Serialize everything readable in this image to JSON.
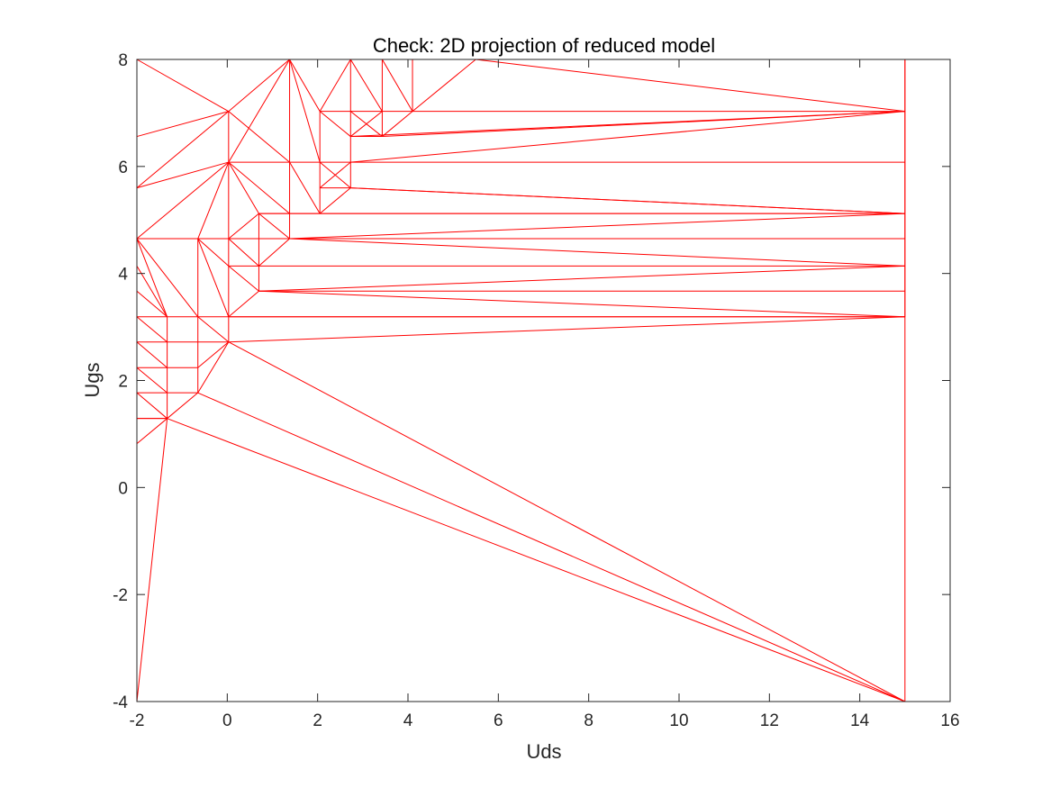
{
  "chart_data": {
    "type": "mesh",
    "title": "Check: 2D projection of reduced model",
    "xlabel": "Uds",
    "ylabel": "Ugs",
    "xlim": [
      -2,
      16
    ],
    "ylim": [
      -4,
      8
    ],
    "xticks": [
      -2,
      0,
      2,
      4,
      6,
      8,
      10,
      12,
      14,
      16
    ],
    "yticks": [
      -4,
      -2,
      0,
      2,
      4,
      6,
      8
    ],
    "grid": false,
    "mesh_color": "#ff0000",
    "box": true,
    "vertices": [
      [
        -2,
        -4
      ],
      [
        15,
        -4
      ],
      [
        15,
        8
      ],
      [
        -2,
        8
      ],
      [
        -2,
        0.82
      ],
      [
        -2,
        1.29
      ],
      [
        -2,
        1.77
      ],
      [
        -2,
        2.24
      ],
      [
        -2,
        2.72
      ],
      [
        -2,
        3.19
      ],
      [
        -2,
        3.67
      ],
      [
        -2,
        4.14
      ],
      [
        -2,
        4.65
      ],
      [
        -2,
        5.6
      ],
      [
        -2,
        6.56
      ],
      [
        -1.33,
        1.29
      ],
      [
        -1.33,
        1.77
      ],
      [
        -1.33,
        2.24
      ],
      [
        -1.33,
        2.72
      ],
      [
        -1.33,
        3.19
      ],
      [
        -0.65,
        1.77
      ],
      [
        -0.65,
        2.24
      ],
      [
        -0.65,
        2.72
      ],
      [
        -0.65,
        3.19
      ],
      [
        -0.65,
        4.65
      ],
      [
        0.03,
        2.72
      ],
      [
        0.03,
        3.19
      ],
      [
        0.03,
        4.14
      ],
      [
        0.03,
        4.65
      ],
      [
        0.03,
        6.08
      ],
      [
        0.03,
        7.03
      ],
      [
        0.7,
        3.67
      ],
      [
        0.7,
        4.14
      ],
      [
        0.7,
        5.12
      ],
      [
        1.38,
        4.65
      ],
      [
        1.38,
        5.12
      ],
      [
        1.38,
        6.08
      ],
      [
        1.38,
        8
      ],
      [
        2.05,
        5.12
      ],
      [
        2.05,
        5.6
      ],
      [
        2.05,
        6.08
      ],
      [
        2.05,
        7.03
      ],
      [
        2.73,
        5.6
      ],
      [
        2.73,
        6.08
      ],
      [
        2.73,
        6.56
      ],
      [
        2.73,
        7.03
      ],
      [
        2.73,
        8
      ],
      [
        3.43,
        6.56
      ],
      [
        3.43,
        7.03
      ],
      [
        3.43,
        8
      ],
      [
        4.1,
        7.03
      ],
      [
        4.1,
        8
      ],
      [
        5.5,
        8
      ],
      [
        15,
        3.19
      ],
      [
        15,
        3.67
      ],
      [
        15,
        4.14
      ],
      [
        15,
        4.65
      ],
      [
        15,
        5.12
      ],
      [
        15,
        6.08
      ],
      [
        15,
        7.03
      ]
    ],
    "edges": [
      [
        0,
        1
      ],
      [
        1,
        2
      ],
      [
        2,
        3
      ],
      [
        3,
        0
      ],
      [
        0,
        15
      ],
      [
        4,
        15
      ],
      [
        5,
        15
      ],
      [
        6,
        16
      ],
      [
        7,
        17
      ],
      [
        8,
        18
      ],
      [
        9,
        19
      ],
      [
        10,
        19
      ],
      [
        11,
        19
      ],
      [
        12,
        24
      ],
      [
        12,
        23
      ],
      [
        12,
        19
      ],
      [
        12,
        29
      ],
      [
        13,
        29
      ],
      [
        13,
        30
      ],
      [
        14,
        30
      ],
      [
        14,
        3
      ],
      [
        3,
        30
      ],
      [
        5,
        6
      ],
      [
        6,
        7
      ],
      [
        7,
        8
      ],
      [
        8,
        9
      ],
      [
        9,
        10
      ],
      [
        10,
        11
      ],
      [
        11,
        12
      ],
      [
        12,
        13
      ],
      [
        13,
        14
      ],
      [
        15,
        16
      ],
      [
        16,
        17
      ],
      [
        17,
        18
      ],
      [
        18,
        19
      ],
      [
        15,
        20
      ],
      [
        5,
        15
      ],
      [
        6,
        15
      ],
      [
        7,
        16
      ],
      [
        8,
        17
      ],
      [
        9,
        18
      ],
      [
        16,
        20
      ],
      [
        17,
        21
      ],
      [
        18,
        22
      ],
      [
        19,
        23
      ],
      [
        20,
        21
      ],
      [
        21,
        22
      ],
      [
        22,
        23
      ],
      [
        23,
        24
      ],
      [
        20,
        25
      ],
      [
        21,
        25
      ],
      [
        22,
        25
      ],
      [
        23,
        26
      ],
      [
        23,
        25
      ],
      [
        24,
        26
      ],
      [
        24,
        27
      ],
      [
        24,
        28
      ],
      [
        24,
        29
      ],
      [
        25,
        26
      ],
      [
        26,
        27
      ],
      [
        27,
        28
      ],
      [
        28,
        29
      ],
      [
        29,
        30
      ],
      [
        25,
        53
      ],
      [
        26,
        53
      ],
      [
        26,
        31
      ],
      [
        27,
        31
      ],
      [
        27,
        32
      ],
      [
        28,
        32
      ],
      [
        28,
        33
      ],
      [
        28,
        34
      ],
      [
        29,
        33
      ],
      [
        29,
        35
      ],
      [
        29,
        36
      ],
      [
        30,
        36
      ],
      [
        30,
        37
      ],
      [
        29,
        37
      ],
      [
        31,
        32
      ],
      [
        32,
        33
      ],
      [
        31,
        54
      ],
      [
        31,
        53
      ],
      [
        32,
        55
      ],
      [
        31,
        55
      ],
      [
        32,
        34
      ],
      [
        33,
        34
      ],
      [
        33,
        35
      ],
      [
        34,
        35
      ],
      [
        35,
        36
      ],
      [
        36,
        37
      ],
      [
        34,
        56
      ],
      [
        34,
        55
      ],
      [
        34,
        57
      ],
      [
        35,
        38
      ],
      [
        36,
        38
      ],
      [
        36,
        40
      ],
      [
        37,
        40
      ],
      [
        37,
        41
      ],
      [
        38,
        39
      ],
      [
        39,
        40
      ],
      [
        40,
        41
      ],
      [
        38,
        57
      ],
      [
        39,
        42
      ],
      [
        38,
        42
      ],
      [
        42,
        57
      ],
      [
        40,
        43
      ],
      [
        39,
        43
      ],
      [
        40,
        42
      ],
      [
        42,
        43
      ],
      [
        43,
        44
      ],
      [
        44,
        45
      ],
      [
        45,
        46
      ],
      [
        41,
        45
      ],
      [
        41,
        44
      ],
      [
        37,
        46
      ],
      [
        41,
        46
      ],
      [
        46,
        48
      ],
      [
        44,
        47
      ],
      [
        44,
        48
      ],
      [
        45,
        47
      ],
      [
        45,
        48
      ],
      [
        43,
        58
      ],
      [
        43,
        59
      ],
      [
        44,
        59
      ],
      [
        47,
        48
      ],
      [
        48,
        49
      ],
      [
        47,
        50
      ],
      [
        48,
        50
      ],
      [
        49,
        50
      ],
      [
        50,
        51
      ],
      [
        47,
        59
      ],
      [
        50,
        59
      ],
      [
        49,
        51
      ],
      [
        51,
        52
      ],
      [
        50,
        52
      ],
      [
        52,
        59
      ],
      [
        25,
        1
      ],
      [
        20,
        1
      ],
      [
        15,
        1
      ],
      [
        53,
        54
      ],
      [
        54,
        55
      ],
      [
        55,
        56
      ],
      [
        56,
        57
      ],
      [
        57,
        58
      ],
      [
        58,
        59
      ],
      [
        59,
        2
      ],
      [
        26,
        53
      ],
      [
        33,
        57
      ],
      [
        42,
        57
      ]
    ]
  }
}
